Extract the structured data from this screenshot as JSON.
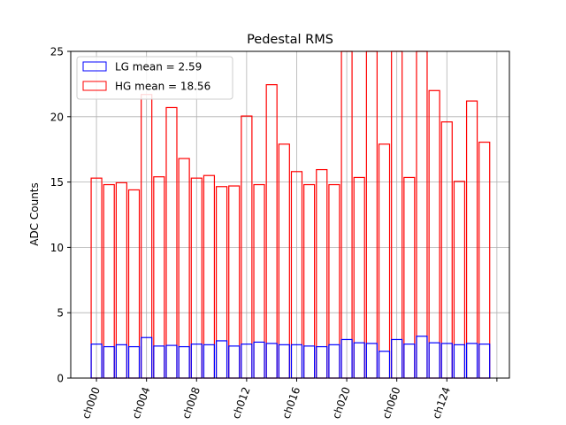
{
  "chart_data": {
    "type": "bar",
    "title": "Pedestal RMS",
    "xlabel": "",
    "ylabel": "ADC Counts",
    "ylim": [
      0,
      25
    ],
    "yticks": [
      0,
      5,
      10,
      15,
      20,
      25
    ],
    "grid": true,
    "legend_position": "top-left",
    "xtick_labels": [
      "ch000",
      "ch004",
      "ch008",
      "ch012",
      "ch016",
      "ch020",
      "ch060",
      "ch124"
    ],
    "xtick_every": 4,
    "bar_count": 32,
    "series": [
      {
        "name": "HG mean = 18.56",
        "color": "#ff0000",
        "values": [
          15.3,
          14.8,
          14.95,
          14.4,
          21.7,
          15.4,
          20.7,
          16.8,
          15.3,
          15.5,
          14.65,
          14.7,
          20.05,
          14.8,
          22.45,
          17.9,
          15.8,
          14.8,
          15.95,
          14.8,
          25.0,
          15.35,
          25.0,
          17.9,
          25.0,
          15.35,
          25.0,
          22.0,
          19.6,
          15.05,
          21.2,
          18.05
        ]
      },
      {
        "name": "LG mean = 2.59",
        "color": "#0000ff",
        "values": [
          2.6,
          2.4,
          2.55,
          2.4,
          3.1,
          2.45,
          2.5,
          2.4,
          2.6,
          2.55,
          2.85,
          2.45,
          2.6,
          2.75,
          2.65,
          2.55,
          2.55,
          2.45,
          2.4,
          2.55,
          2.95,
          2.7,
          2.65,
          2.05,
          2.95,
          2.6,
          3.2,
          2.7,
          2.65,
          2.55,
          2.65,
          2.6
        ]
      }
    ]
  }
}
